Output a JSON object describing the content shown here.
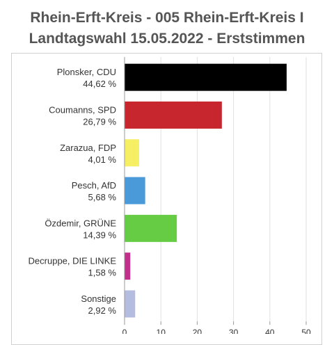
{
  "header": {
    "title_line1": "Rhein-Erft-Kreis - 005 Rhein-Erft-Kreis I",
    "title_line2": "Landtagswahl 15.05.2022  - Erststimmen"
  },
  "chart_data": {
    "type": "bar",
    "orientation": "horizontal",
    "title": "Rhein-Erft-Kreis - 005 Rhein-Erft-Kreis I Landtagswahl 15.05.2022  - Erststimmen",
    "categories": [
      "Plonsker, CDU",
      "Coumanns, SPD",
      "Zarazua, FDP",
      "Pesch, AfD",
      "Özdemir, GRÜNE",
      "Decruppe, DIE LINKE",
      "Sonstige"
    ],
    "value_labels": [
      "44,62 %",
      "26,79 %",
      "4,01 %",
      "5,68 %",
      "14,39 %",
      "1,58 %",
      "2,92 %"
    ],
    "values": [
      44.62,
      26.79,
      4.01,
      5.68,
      14.39,
      1.58,
      2.92
    ],
    "colors": [
      "#000000",
      "#c8262f",
      "#f6ee63",
      "#4a9ad9",
      "#66cc44",
      "#c0318a",
      "#b4bde0"
    ],
    "xlim": [
      0,
      50
    ],
    "xticks": [
      0,
      10,
      20,
      30,
      40,
      50
    ],
    "grid": true,
    "xlabel": "",
    "ylabel": ""
  }
}
